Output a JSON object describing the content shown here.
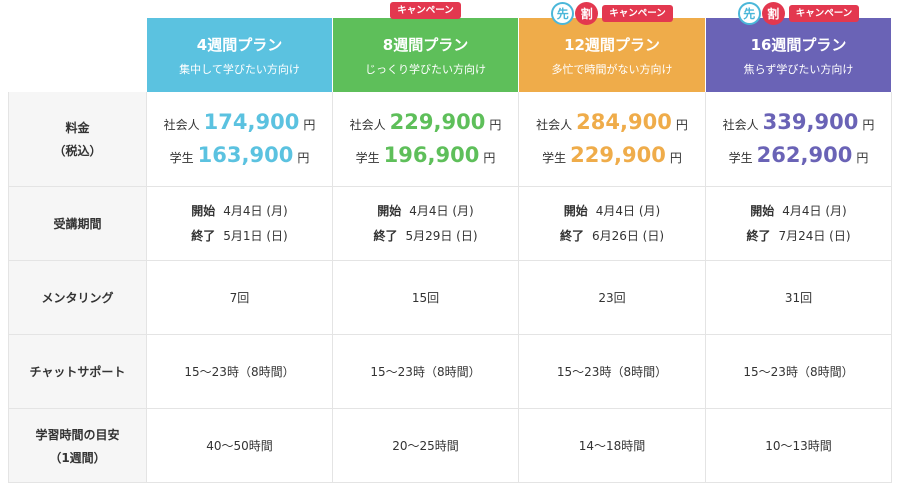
{
  "row_headers": {
    "price": [
      "料金",
      "（税込）"
    ],
    "period": [
      "受講期間"
    ],
    "mentoring": [
      "メンタリング"
    ],
    "chat": [
      "チャットサポート"
    ],
    "study": [
      "学習時間の目安",
      "（1週間）"
    ]
  },
  "badges": {
    "campaign": "キャンペーン",
    "saki": "先",
    "wari": "割"
  },
  "price_labels": {
    "worker": "社会人",
    "student": "学生",
    "yen": "円"
  },
  "period_labels": {
    "start": "開始",
    "end": "終了"
  },
  "plans": [
    {
      "title": "4週間プラン",
      "subtitle": "集中して学びたい方向け",
      "color": "#5bc2e0",
      "worker_price": "174,900",
      "student_price": "163,900",
      "start": "4月4日 (月)",
      "end": "5月1日 (日)",
      "mentoring": "7回",
      "chat": "15〜23時（8時間）",
      "study": "40〜50時間"
    },
    {
      "title": "8週間プラン",
      "subtitle": "じっくり学びたい方向け",
      "color": "#5ebf5a",
      "worker_price": "229,900",
      "student_price": "196,900",
      "start": "4月4日 (月)",
      "end": "5月29日 (日)",
      "mentoring": "15回",
      "chat": "15〜23時（8時間）",
      "study": "20〜25時間"
    },
    {
      "title": "12週間プラン",
      "subtitle": "多忙で時間がない方向け",
      "color": "#efac4a",
      "worker_price": "284,900",
      "student_price": "229,900",
      "start": "4月4日 (月)",
      "end": "6月26日 (日)",
      "mentoring": "23回",
      "chat": "15〜23時（8時間）",
      "study": "14〜18時間"
    },
    {
      "title": "16週間プラン",
      "subtitle": "焦らず学びたい方向け",
      "color": "#6a63b6",
      "worker_price": "339,900",
      "student_price": "262,900",
      "start": "4月4日 (月)",
      "end": "7月24日 (日)",
      "mentoring": "31回",
      "chat": "15〜23時（8時間）",
      "study": "10〜13時間"
    }
  ]
}
